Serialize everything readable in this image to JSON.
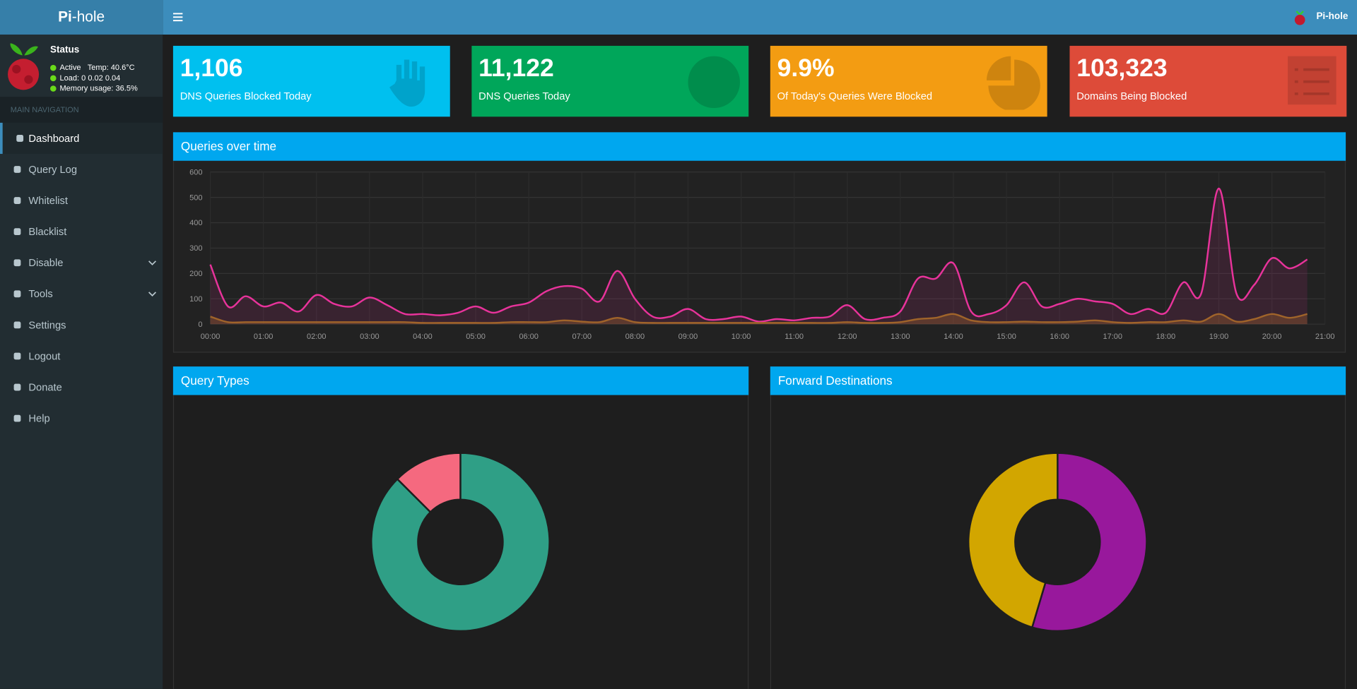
{
  "header": {
    "logo_prefix": "Pi",
    "logo_suffix": "-hole",
    "user": "Pi-hole"
  },
  "sidebar": {
    "status": {
      "title": "Status",
      "active": "Active",
      "temp": "Temp: 40.6°C",
      "load": "Load:  0  0.02  0.04",
      "memory": "Memory usage:  36.5%"
    },
    "nav_header": "MAIN NAVIGATION",
    "nav": [
      "Dashboard",
      "Query Log",
      "Whitelist",
      "Blacklist",
      "Disable",
      "Tools",
      "Settings",
      "Logout",
      "Donate",
      "Help"
    ],
    "active": 0
  },
  "stats": [
    {
      "value": "1,106",
      "label": "DNS Queries Blocked Today",
      "color": "#00c0ef"
    },
    {
      "value": "11,122",
      "label": "DNS Queries Today",
      "color": "#00a65a"
    },
    {
      "value": "9.9%",
      "label": "Of Today's Queries Were Blocked",
      "color": "#f39c12"
    },
    {
      "value": "103,323",
      "label": "Domains Being Blocked",
      "color": "#dd4b39"
    }
  ],
  "chart_data": [
    {
      "type": "line",
      "title": "Queries over time",
      "x": [
        "00:00",
        "00:20",
        "00:40",
        "01:00",
        "01:20",
        "01:40",
        "02:00",
        "02:20",
        "02:40",
        "03:00",
        "03:20",
        "03:40",
        "04:00",
        "04:20",
        "04:40",
        "05:00",
        "05:20",
        "05:40",
        "06:00",
        "06:20",
        "06:40",
        "07:00",
        "07:20",
        "07:40",
        "08:00",
        "08:20",
        "08:40",
        "09:00",
        "09:20",
        "09:40",
        "10:00",
        "10:20",
        "10:40",
        "11:00",
        "11:20",
        "11:40",
        "12:00",
        "12:20",
        "12:40",
        "13:00",
        "13:20",
        "13:40",
        "14:00",
        "14:20",
        "14:40",
        "15:00",
        "15:20",
        "15:40",
        "16:00",
        "16:20",
        "16:40",
        "17:00",
        "17:20",
        "17:40",
        "18:00",
        "18:20",
        "18:40",
        "19:00",
        "19:20",
        "19:40",
        "20:00",
        "20:20",
        "20:40"
      ],
      "series": [
        {
          "color": "#e8339b",
          "values": [
            235,
            70,
            110,
            70,
            85,
            50,
            115,
            80,
            70,
            105,
            75,
            40,
            40,
            35,
            45,
            70,
            45,
            70,
            85,
            130,
            150,
            140,
            90,
            210,
            100,
            30,
            30,
            60,
            20,
            20,
            30,
            10,
            20,
            15,
            25,
            30,
            75,
            20,
            25,
            50,
            180,
            180,
            240,
            50,
            40,
            75,
            165,
            70,
            80,
            100,
            90,
            80,
            40,
            60,
            45,
            165,
            120,
            535,
            120,
            155,
            260,
            220,
            255
          ]
        },
        {
          "color": "#a0642a",
          "values": [
            30,
            8,
            8,
            8,
            8,
            8,
            8,
            8,
            8,
            8,
            8,
            8,
            5,
            5,
            5,
            5,
            5,
            8,
            8,
            8,
            15,
            10,
            8,
            25,
            8,
            5,
            5,
            5,
            5,
            5,
            5,
            5,
            5,
            5,
            5,
            5,
            8,
            5,
            5,
            8,
            20,
            25,
            40,
            15,
            8,
            8,
            10,
            8,
            8,
            10,
            15,
            8,
            5,
            8,
            8,
            15,
            10,
            40,
            10,
            20,
            40,
            25,
            40
          ]
        }
      ],
      "xlim": [
        "00:00",
        "21:00"
      ],
      "xticks": [
        "00:00",
        "01:00",
        "02:00",
        "03:00",
        "04:00",
        "05:00",
        "06:00",
        "07:00",
        "08:00",
        "09:00",
        "10:00",
        "11:00",
        "12:00",
        "13:00",
        "14:00",
        "15:00",
        "16:00",
        "17:00",
        "18:00",
        "19:00",
        "20:00",
        "21:00"
      ],
      "ylim": [
        0,
        600
      ],
      "yticks": [
        0,
        100,
        200,
        300,
        400,
        500,
        600
      ],
      "grid": true
    },
    {
      "type": "pie",
      "title": "Query Types",
      "values": [
        87.5,
        12.5
      ],
      "colors": [
        "#2f9f86",
        "#f5697f"
      ]
    },
    {
      "type": "pie",
      "title": "Forward Destinations",
      "values": [
        54.6,
        45.4
      ],
      "colors": [
        "#98189c",
        "#d2a600"
      ]
    }
  ]
}
